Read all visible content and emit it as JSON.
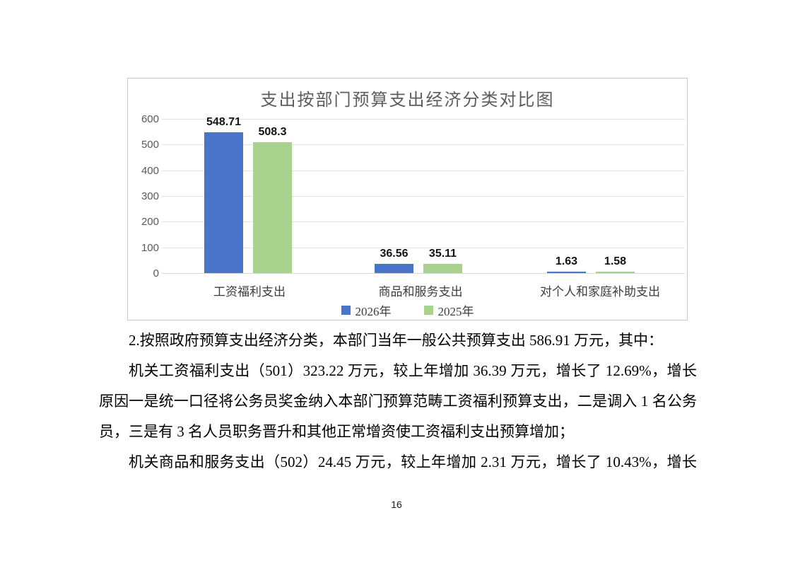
{
  "page": {
    "number": "16",
    "background": "#ffffff"
  },
  "chart_data": {
    "type": "bar",
    "title": "支出按部门预算支出经济分类对比图",
    "categories": [
      "工资福利支出",
      "商品和服务支出",
      "对个人和家庭补助支出"
    ],
    "series": [
      {
        "name": "2026年",
        "color": "#4a74c9",
        "values": [
          548.71,
          36.56,
          1.63
        ]
      },
      {
        "name": "2025年",
        "color": "#a9d28e",
        "values": [
          508.3,
          35.11,
          1.58
        ]
      }
    ],
    "xlabel": "",
    "ylabel": "",
    "ylim": [
      0,
      600
    ],
    "yticks": [
      0,
      100,
      200,
      300,
      400,
      500,
      600
    ],
    "grid": true,
    "legend_position": "bottom",
    "colors": {
      "grid": "#e2e2e2",
      "axis_text": "#595959",
      "title_text": "#5d5d5d",
      "data_label_text": "#141414",
      "chart_border": "#c9c9c9"
    }
  },
  "body": {
    "lines": [
      {
        "text": "2.按照政府预算支出经济分类，本部门当年一般公共预算支出 586.91 万元，其中：",
        "indent": true,
        "stretch": false
      },
      {
        "text": "机关工资福利支出（501）323.22 万元，较上年增加 36.39 万元，增长了 12.69%，增长",
        "indent": true,
        "stretch": true
      },
      {
        "text": "原因一是统一口径将公务员奖金纳入本部门预算范畴工资福利预算支出，二是调入 1 名公务",
        "indent": false,
        "stretch": true
      },
      {
        "text": "员，三是有 3 名人员职务晋升和其他正常增资使工资福利支出预算增加；",
        "indent": false,
        "stretch": false
      },
      {
        "text": "机关商品和服务支出（502）24.45 万元，较上年增加 2.31 万元，增长了 10.43%，增长",
        "indent": true,
        "stretch": true
      }
    ]
  }
}
